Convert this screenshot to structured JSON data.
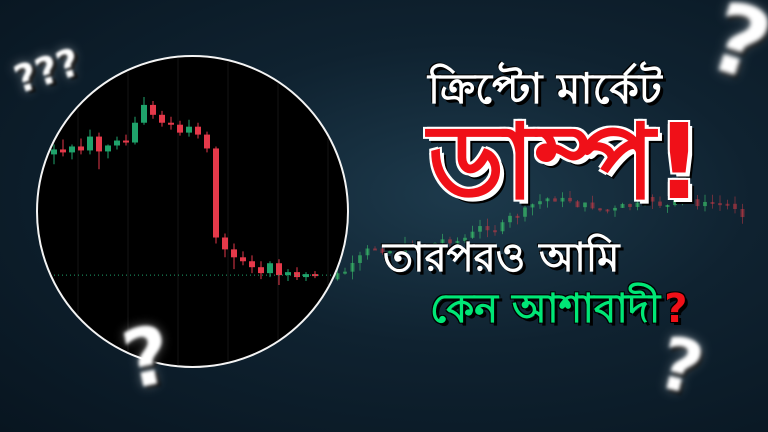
{
  "colors": {
    "background": "#0f2230",
    "bull": "#1fa36b",
    "bear": "#e5394a",
    "headline_white": "#ffffff",
    "headline_red": "#f01018",
    "headline_green": "#00e676"
  },
  "headline": {
    "line1": "ক্রিপ্টো মার্কেট",
    "line2": "ডাম্প!",
    "line3": "তারপরও আমি",
    "line4": "কেন আশাবাদী",
    "line4_mark": "?"
  },
  "question_marks": [
    "???",
    "?",
    "?",
    "?"
  ],
  "chart_data": {
    "type": "candlestick",
    "series": [
      {
        "o": 100,
        "h": 101,
        "l": 99,
        "c": 100.5
      },
      {
        "o": 100.5,
        "h": 101.5,
        "l": 99.8,
        "c": 100.2
      },
      {
        "o": 100.2,
        "h": 101,
        "l": 99.5,
        "c": 100.8
      },
      {
        "o": 100.8,
        "h": 101.6,
        "l": 100,
        "c": 100.4
      },
      {
        "o": 100.4,
        "h": 102.5,
        "l": 100,
        "c": 101.8
      },
      {
        "o": 101.8,
        "h": 102.2,
        "l": 98.5,
        "c": 100.3
      },
      {
        "o": 100.3,
        "h": 101,
        "l": 99.6,
        "c": 100.9
      },
      {
        "o": 100.9,
        "h": 101.8,
        "l": 100.5,
        "c": 101.4
      },
      {
        "o": 101.4,
        "h": 102,
        "l": 100.9,
        "c": 101.2
      },
      {
        "o": 101.2,
        "h": 103.8,
        "l": 101,
        "c": 103.2
      },
      {
        "o": 103.2,
        "h": 105.8,
        "l": 103,
        "c": 105
      },
      {
        "o": 105,
        "h": 105.4,
        "l": 103.6,
        "c": 104
      },
      {
        "o": 104,
        "h": 104.4,
        "l": 102.8,
        "c": 103.2
      },
      {
        "o": 103.2,
        "h": 103.8,
        "l": 102.5,
        "c": 103
      },
      {
        "o": 103,
        "h": 103.4,
        "l": 101.9,
        "c": 102.2
      },
      {
        "o": 102.2,
        "h": 103.5,
        "l": 101.8,
        "c": 102.8
      },
      {
        "o": 102.8,
        "h": 103.2,
        "l": 101.6,
        "c": 102
      },
      {
        "o": 102,
        "h": 102.3,
        "l": 100.2,
        "c": 100.6
      },
      {
        "o": 100.6,
        "h": 100.8,
        "l": 91,
        "c": 91.6
      },
      {
        "o": 91.6,
        "h": 92,
        "l": 89.6,
        "c": 90.4
      },
      {
        "o": 90.4,
        "h": 91,
        "l": 88.4,
        "c": 89.6
      },
      {
        "o": 89.6,
        "h": 90.2,
        "l": 88.8,
        "c": 89.2
      },
      {
        "o": 89.2,
        "h": 89.8,
        "l": 88,
        "c": 88.6
      },
      {
        "o": 88.6,
        "h": 89.2,
        "l": 87.4,
        "c": 88
      },
      {
        "o": 88,
        "h": 89.2,
        "l": 87.6,
        "c": 89
      },
      {
        "o": 89,
        "h": 89.4,
        "l": 86.8,
        "c": 87.8
      },
      {
        "o": 87.8,
        "h": 88.4,
        "l": 87.2,
        "c": 88.1
      },
      {
        "o": 88.1,
        "h": 88.6,
        "l": 87.3,
        "c": 87.6
      },
      {
        "o": 87.6,
        "h": 88.1,
        "l": 87.2,
        "c": 87.9
      },
      {
        "o": 87.9,
        "h": 88.2,
        "l": 87.5,
        "c": 87.8
      }
    ]
  }
}
